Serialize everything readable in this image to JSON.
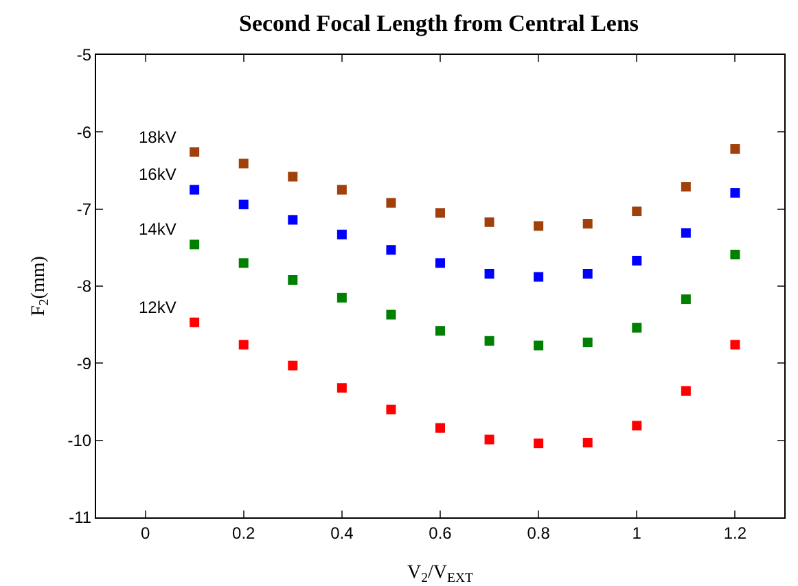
{
  "chart_data": {
    "type": "scatter",
    "title": "Second Focal Length from Central Lens",
    "xlabel": "V$_{2}$/V$_{EXT}$",
    "ylabel": "F$_{2}$(mm)",
    "x": [
      0.1,
      0.2,
      0.3,
      0.4,
      0.5,
      0.6,
      0.7,
      0.8,
      0.9,
      1.0,
      1.1,
      1.2
    ],
    "series": [
      {
        "name": "18kV",
        "color": "#a0400a",
        "values": [
          -6.26,
          -6.41,
          -6.58,
          -6.75,
          -6.92,
          -7.05,
          -7.17,
          -7.22,
          -7.19,
          -7.03,
          -6.71,
          -6.22
        ]
      },
      {
        "name": "16kV",
        "color": "#0000ff",
        "values": [
          -6.75,
          -6.94,
          -7.14,
          -7.33,
          -7.53,
          -7.7,
          -7.84,
          -7.88,
          -7.84,
          -7.67,
          -7.31,
          -6.79
        ]
      },
      {
        "name": "14kV",
        "color": "#008000",
        "values": [
          -7.46,
          -7.7,
          -7.92,
          -8.15,
          -8.37,
          -8.58,
          -8.71,
          -8.77,
          -8.73,
          -8.54,
          -8.17,
          -7.59
        ]
      },
      {
        "name": "12kV",
        "color": "#ff0000",
        "values": [
          -8.47,
          -8.76,
          -9.03,
          -9.32,
          -9.6,
          -9.84,
          -9.99,
          -10.04,
          -10.03,
          -9.81,
          -9.36,
          -8.76
        ]
      }
    ],
    "xlim": [
      -0.1,
      1.3
    ],
    "xticks": [
      0,
      0.2,
      0.4,
      0.6,
      0.8,
      1,
      1.2
    ],
    "ylim": [
      -11,
      -5
    ],
    "yticks": [
      -11,
      -10,
      -9,
      -8,
      -7,
      -6,
      -5
    ],
    "grid": false,
    "legend": false,
    "marker": "square"
  }
}
